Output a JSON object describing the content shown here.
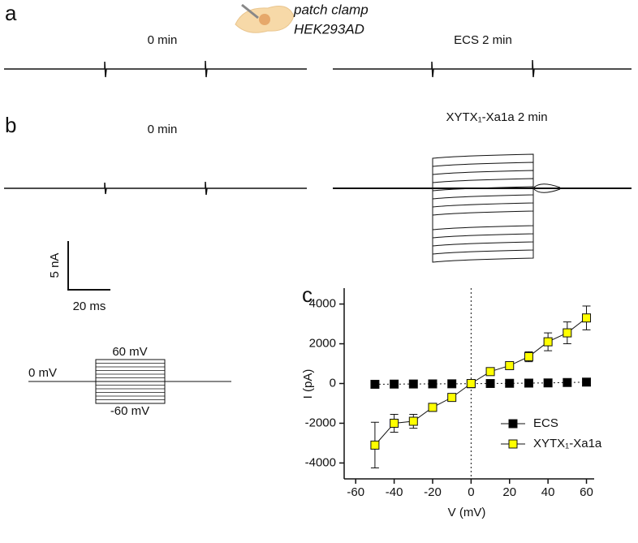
{
  "figure": {
    "panel_a": {
      "label": "a",
      "left_title": "0 min",
      "right_title": "ECS 2 min"
    },
    "panel_b": {
      "label": "b",
      "left_title": "0 min",
      "right_title": "XYTX₁-Xa1a 2 min"
    },
    "cell": {
      "line1": "patch clamp",
      "line2": "HEK293AD"
    },
    "scale_bar": {
      "current": "5 nA",
      "time": "20 ms"
    },
    "protocol": {
      "top": "60 mV",
      "hold": "0 mV",
      "bottom": "-60 mV"
    }
  },
  "chart_data": {
    "type": "scatter",
    "label": "c",
    "x_label": "V (mV)",
    "y_label": "I (pA)",
    "x": [
      -50,
      -40,
      -30,
      -20,
      -10,
      0,
      10,
      20,
      30,
      40,
      50,
      60
    ],
    "series": [
      {
        "name": "ECS",
        "color": "#000000",
        "values": [
          -40,
          -30,
          -25,
          -20,
          -15,
          -10,
          0,
          10,
          20,
          30,
          50,
          70
        ],
        "errors": [
          20,
          20,
          20,
          20,
          20,
          20,
          20,
          20,
          20,
          20,
          20,
          30
        ]
      },
      {
        "name": "XYTX₁-Xa1a",
        "color": "#ffff00",
        "values": [
          -3100,
          -2000,
          -1900,
          -1200,
          -700,
          0,
          600,
          900,
          1350,
          2100,
          2550,
          3300
        ],
        "errors": [
          1150,
          450,
          350,
          200,
          100,
          50,
          100,
          150,
          250,
          450,
          550,
          600
        ]
      }
    ],
    "xlim": [
      -66,
      64
    ],
    "ylim": [
      -4800,
      4800
    ],
    "xticks": [
      -60,
      -40,
      -20,
      0,
      20,
      40,
      60
    ],
    "yticks": [
      -4000,
      -2000,
      0,
      2000,
      4000
    ],
    "legend": "lower right"
  }
}
